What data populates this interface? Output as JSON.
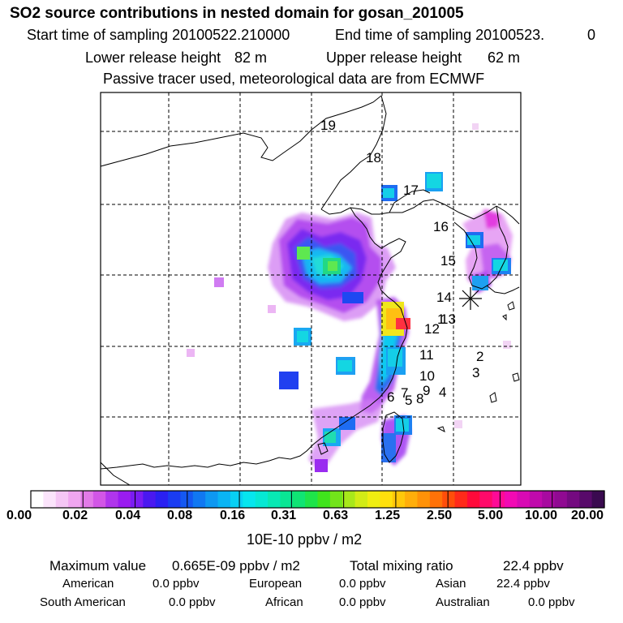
{
  "header": {
    "title": "SO2 source contributions in nested domain for gosan_201005",
    "start_label": "Start time of sampling 20100522.210000",
    "end_label": "End time of sampling 20100523.",
    "end_value": "0",
    "lower_label": "Lower release height",
    "lower_value": "82 m",
    "upper_label": "Upper release height",
    "upper_value": "62 m",
    "tracer_note": "Passive tracer used, meteorological data are from ECMWF"
  },
  "map": {
    "receptor_marker": "asterisk-marker",
    "regions": [
      "1",
      "2",
      "3",
      "4",
      "5",
      "6",
      "7",
      "8",
      "9",
      "10",
      "11",
      "12",
      "13",
      "14",
      "15",
      "16",
      "17",
      "18",
      "19"
    ]
  },
  "colorbar": {
    "labels": [
      "0.00",
      "0.02",
      "0.04",
      "0.08",
      "0.16",
      "0.31",
      "0.63",
      "1.25",
      "2.50",
      "5.00",
      "10.00",
      "20.00"
    ],
    "colors": [
      "#ffffff",
      "#fbe4fb",
      "#f5c6f5",
      "#f0a6f0",
      "#e27ae8",
      "#d256e6",
      "#b035ec",
      "#9a1cf0",
      "#7a1cf2",
      "#4a18f0",
      "#2a20f2",
      "#1a3cf2",
      "#1458f2",
      "#1078f2",
      "#0e98f2",
      "#0ab4f4",
      "#08d0f4",
      "#06e6ee",
      "#06e8d4",
      "#08e8b4",
      "#0ae694",
      "#10e474",
      "#1ee44a",
      "#40e41c",
      "#72e41a",
      "#a8e81a",
      "#d2ec16",
      "#f0ee10",
      "#ffe00c",
      "#ffc80a",
      "#ffae0a",
      "#ff9208",
      "#ff7208",
      "#ff4e0a",
      "#ff2a1a",
      "#ff0a3a",
      "#ff0a6a",
      "#ff0a96",
      "#f20ab4",
      "#d80ab4",
      "#c00aac",
      "#a80aa0",
      "#900a92",
      "#740a80",
      "#580a6a",
      "#3a0a50"
    ],
    "unit": "10E-10 ppbv / m2"
  },
  "stats": {
    "max_label": "Maximum value",
    "max_value": "0.665E-09 ppbv / m2",
    "total_label": "Total mixing ratio",
    "total_value": "22.4 ppbv",
    "american_label": "American",
    "american_value": "0.0 ppbv",
    "european_label": "European",
    "european_value": "0.0 ppbv",
    "asian_label": "Asian",
    "asian_value": "22.4 ppbv",
    "south_american_label": "South American",
    "south_american_value": "0.0 ppbv",
    "african_label": "African",
    "african_value": "0.0 ppbv",
    "australian_label": "Australian",
    "australian_value": "0.0 ppbv"
  }
}
